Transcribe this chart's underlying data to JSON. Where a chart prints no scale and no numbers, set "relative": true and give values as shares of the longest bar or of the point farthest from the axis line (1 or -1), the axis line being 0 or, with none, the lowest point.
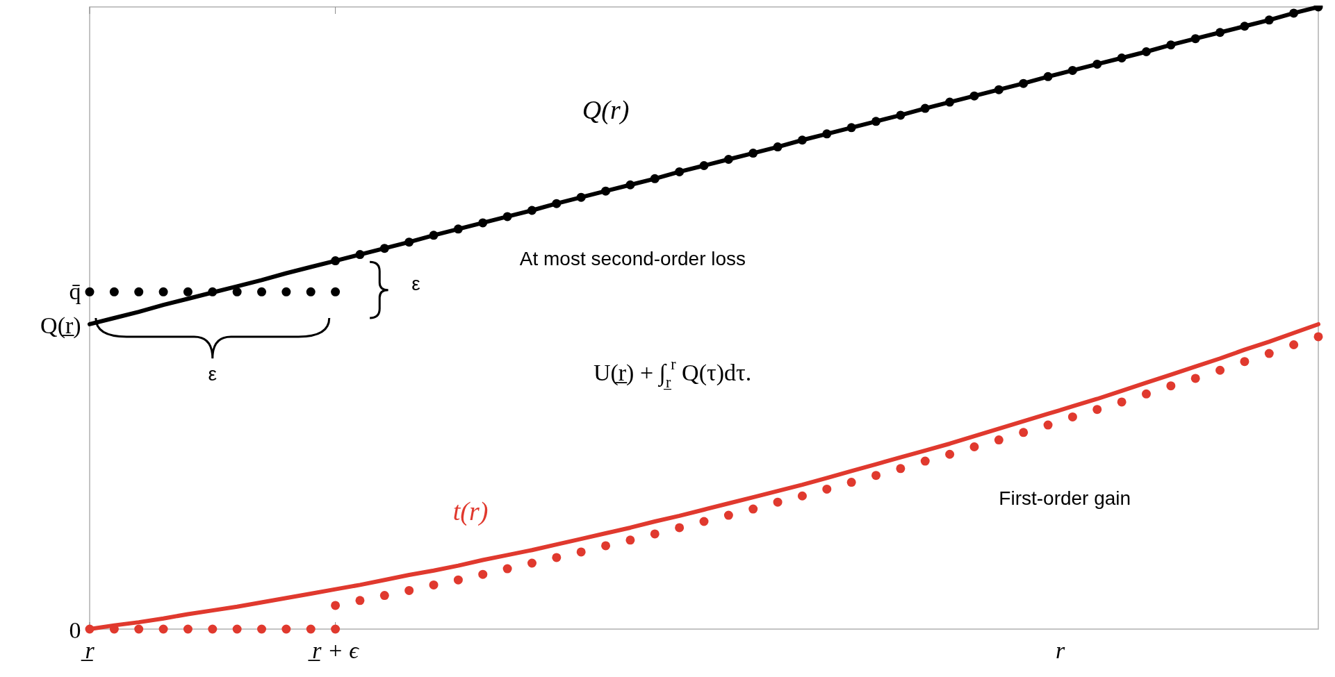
{
  "chart_data": {
    "type": "line",
    "relative": true,
    "xlabel": "r",
    "categories": [
      "r̲",
      null,
      null,
      null,
      null,
      null,
      null,
      null,
      null,
      null,
      "r̲ + ϵ",
      null,
      null,
      null,
      null,
      null,
      null,
      null,
      null,
      null,
      null,
      null,
      null,
      null,
      null,
      null,
      null,
      null,
      null,
      null,
      null,
      null,
      null,
      null,
      null,
      null,
      null,
      null,
      null,
      null,
      null,
      null,
      null,
      null,
      null,
      null,
      null,
      null,
      null,
      null,
      null
    ],
    "series": [
      {
        "name": "Q(r)",
        "color": "#000000",
        "values": [
          0.49,
          0.5,
          0.51,
          0.521,
          0.531,
          0.541,
          0.551,
          0.561,
          0.572,
          0.582,
          0.592,
          0.602,
          0.612,
          0.622,
          0.633,
          0.643,
          0.653,
          0.663,
          0.673,
          0.684,
          0.694,
          0.704,
          0.714,
          0.724,
          0.735,
          0.745,
          0.755,
          0.765,
          0.775,
          0.786,
          0.796,
          0.806,
          0.816,
          0.826,
          0.837,
          0.847,
          0.857,
          0.867,
          0.877,
          0.888,
          0.898,
          0.908,
          0.918,
          0.928,
          0.939,
          0.949,
          0.959,
          0.969,
          0.979,
          0.99,
          1.0
        ]
      },
      {
        "color": "#000000",
        "type": "scatter",
        "marker": "circle",
        "values": [
          null,
          null,
          null,
          null,
          null,
          null,
          null,
          null,
          null,
          null,
          0.592,
          0.602,
          0.612,
          0.622,
          0.633,
          0.643,
          0.653,
          0.663,
          0.673,
          0.684,
          0.694,
          0.704,
          0.714,
          0.724,
          0.735,
          0.745,
          0.755,
          0.765,
          0.775,
          0.786,
          0.796,
          0.806,
          0.816,
          0.826,
          0.837,
          0.847,
          0.857,
          0.867,
          0.877,
          0.888,
          0.898,
          0.908,
          0.918,
          0.928,
          0.939,
          0.949,
          0.959,
          0.969,
          0.979,
          0.99,
          1.0
        ]
      },
      {
        "color": "#000000",
        "type": "scatter",
        "marker": "circle",
        "values": [
          0.542,
          0.542,
          0.542,
          0.542,
          0.542,
          0.542,
          0.542,
          0.542,
          0.542,
          0.542,
          0.542,
          null,
          null,
          null,
          null,
          null,
          null,
          null,
          null,
          null,
          null,
          null,
          null,
          null,
          null,
          null,
          null,
          null,
          null,
          null,
          null,
          null,
          null,
          null,
          null,
          null,
          null,
          null,
          null,
          null,
          null,
          null,
          null,
          null,
          null,
          null,
          null,
          null,
          null,
          null,
          null
        ]
      },
      {
        "name": "t(r)",
        "color": "#e0392e",
        "values": [
          0,
          0.006,
          0.011,
          0.017,
          0.024,
          0.03,
          0.036,
          0.043,
          0.05,
          0.057,
          0.064,
          0.071,
          0.079,
          0.087,
          0.094,
          0.102,
          0.111,
          0.119,
          0.127,
          0.136,
          0.145,
          0.154,
          0.163,
          0.173,
          0.182,
          0.192,
          0.202,
          0.212,
          0.222,
          0.232,
          0.243,
          0.254,
          0.265,
          0.276,
          0.287,
          0.298,
          0.31,
          0.322,
          0.334,
          0.346,
          0.358,
          0.37,
          0.383,
          0.396,
          0.409,
          0.422,
          0.435,
          0.449,
          0.462,
          0.476,
          0.49
        ]
      },
      {
        "color": "#e0392e",
        "type": "scatter",
        "marker": "circle",
        "values": [
          0,
          0,
          0,
          0,
          0,
          0,
          0,
          0,
          0,
          0,
          0,
          null,
          null,
          null,
          null,
          null,
          null,
          null,
          null,
          null,
          null,
          null,
          null,
          null,
          null,
          null,
          null,
          null,
          null,
          null,
          null,
          null,
          null,
          null,
          null,
          null,
          null,
          null,
          null,
          null,
          null,
          null,
          null,
          null,
          null,
          null,
          null,
          null,
          null,
          null,
          null
        ]
      },
      {
        "color": "#e0392e",
        "type": "scatter",
        "marker": "circle",
        "values": [
          null,
          null,
          null,
          null,
          null,
          null,
          null,
          null,
          null,
          null,
          0.038,
          0.046,
          0.054,
          0.062,
          0.071,
          0.079,
          0.088,
          0.097,
          0.106,
          0.115,
          0.124,
          0.134,
          0.143,
          0.153,
          0.163,
          0.173,
          0.183,
          0.193,
          0.204,
          0.214,
          0.225,
          0.236,
          0.247,
          0.258,
          0.27,
          0.281,
          0.293,
          0.304,
          0.316,
          0.328,
          0.341,
          0.353,
          0.365,
          0.378,
          0.391,
          0.403,
          0.416,
          0.43,
          0.443,
          0.457,
          0.47
        ]
      }
    ],
    "annotations": [
      "q̄",
      "Q(r̲)",
      "0",
      "At most second-order loss",
      "ε",
      "ε",
      "U(r̲) + ∫$_{r̲}$$^{r}$ Q(τ)dτ.",
      "First-order gain"
    ]
  }
}
